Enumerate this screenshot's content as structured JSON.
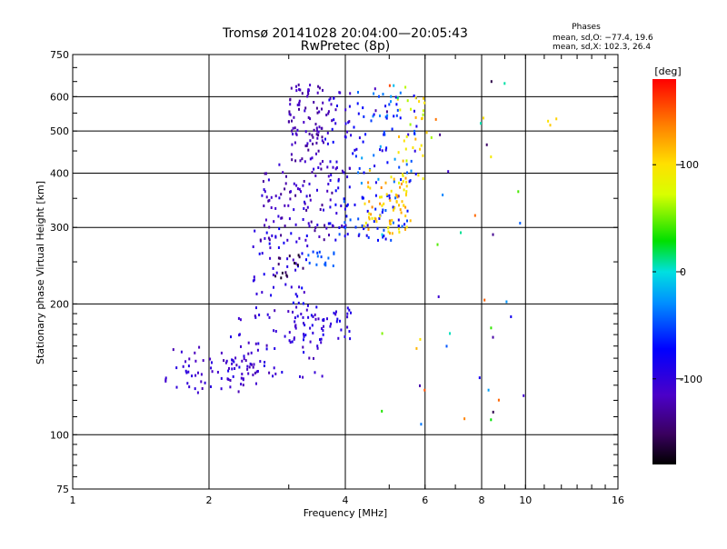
{
  "chart_data": {
    "type": "scatter",
    "title": "Tromsø 20141028 20:04:00—20:05:43",
    "subtitle": "RwPretec (8p)",
    "xlabel": "Frequency [MHz]",
    "ylabel": "Stationary phase Virtual Height [km]",
    "x_scale": "log",
    "y_scale": "log",
    "xlim": [
      1,
      16
    ],
    "ylim": [
      75,
      750
    ],
    "x_ticks": [
      1,
      2,
      4,
      6,
      8,
      10,
      16
    ],
    "y_ticks": [
      75,
      100,
      200,
      300,
      400,
      500,
      600,
      750
    ],
    "grid": true,
    "phase_stats": {
      "heading": "Phases",
      "line_o": "mean, sd,O: −77.4, 19.6",
      "line_x": "mean, sd,X: 102.3, 26.4"
    },
    "colorbar": {
      "label": "[deg]",
      "range": [
        -180,
        180
      ],
      "ticks": [
        100,
        0,
        -100
      ],
      "colormap": "rainbow"
    },
    "point_groups": [
      {
        "freq": [
          1.6,
          2.6
        ],
        "height": [
          125,
          160
        ],
        "phase": -110,
        "spread": 15,
        "count": 70
      },
      {
        "freq": [
          2.2,
          3.6
        ],
        "height": [
          135,
          200
        ],
        "phase": -105,
        "spread": 18,
        "count": 80
      },
      {
        "freq": [
          2.5,
          3.3
        ],
        "height": [
          200,
          300
        ],
        "phase": -95,
        "spread": 20,
        "count": 50
      },
      {
        "freq": [
          3.0,
          4.2
        ],
        "height": [
          165,
          200
        ],
        "phase": -100,
        "spread": 15,
        "count": 40
      },
      {
        "freq": [
          2.6,
          3.8
        ],
        "height": [
          280,
          420
        ],
        "phase": -115,
        "spread": 20,
        "count": 90
      },
      {
        "freq": [
          3.0,
          3.6
        ],
        "height": [
          420,
          650
        ],
        "phase": -120,
        "spread": 15,
        "count": 90
      },
      {
        "freq": [
          3.6,
          4.2
        ],
        "height": [
          300,
          620
        ],
        "phase": -100,
        "spread": 25,
        "count": 60
      },
      {
        "freq": [
          3.8,
          5.5
        ],
        "height": [
          280,
          360
        ],
        "phase": -70,
        "spread": 30,
        "count": 60
      },
      {
        "freq": [
          4.2,
          5.8
        ],
        "height": [
          380,
          620
        ],
        "phase": -60,
        "spread": 40,
        "count": 70
      },
      {
        "freq": [
          4.4,
          5.6
        ],
        "height": [
          290,
          400
        ],
        "phase": 110,
        "spread": 25,
        "count": 70
      },
      {
        "freq": [
          5.2,
          6.2
        ],
        "height": [
          380,
          600
        ],
        "phase": 90,
        "spread": 30,
        "count": 30
      },
      {
        "freq": [
          2.8,
          3.3
        ],
        "height": [
          230,
          260
        ],
        "phase": -155,
        "spread": 15,
        "count": 15
      },
      {
        "freq": [
          3.3,
          3.8
        ],
        "height": [
          245,
          265
        ],
        "phase": -50,
        "spread": 10,
        "count": 15
      },
      {
        "freq": [
          4.5,
          10
        ],
        "height": [
          100,
          680
        ],
        "phase": 0,
        "spread": 160,
        "count": 50
      },
      {
        "freq": [
          11,
          12
        ],
        "height": [
          480,
          550
        ],
        "phase": 100,
        "spread": 10,
        "count": 3
      }
    ]
  }
}
